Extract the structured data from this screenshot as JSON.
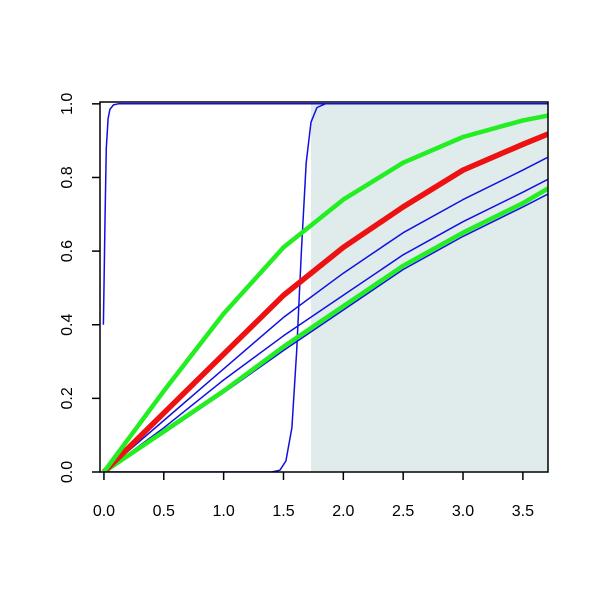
{
  "chart_data": {
    "type": "line",
    "xlim": [
      -0.033,
      3.71
    ],
    "ylim": [
      0,
      1.005
    ],
    "xticks": [
      {
        "value": 0,
        "label": "0.0"
      },
      0.5,
      {
        "value": 1,
        "label": "1.0"
      },
      1.5,
      {
        "value": 2,
        "label": "2.0"
      },
      2.5,
      {
        "value": 3,
        "label": "3.0"
      },
      3.5
    ],
    "yticks": [
      {
        "value": 0,
        "label": "0.0"
      },
      0.2,
      0.4,
      0.6,
      0.8,
      {
        "value": 1,
        "label": "1.0"
      }
    ],
    "shade": {
      "x": [
        1.73,
        3.71
      ],
      "y": [
        0,
        1
      ],
      "color": "#e0ecec"
    },
    "series": [
      {
        "color": "#1010e0",
        "width": 1.5,
        "x": [
          -0.005,
          0.01,
          0.02,
          0.035,
          0.05,
          0.08,
          0.12,
          3.71
        ],
        "values": [
          0.4,
          0.7,
          0.88,
          0.96,
          0.985,
          0.997,
          1.0,
          1.0
        ]
      },
      {
        "color": "#1010e0",
        "width": 1.5,
        "x": [
          0,
          1.4,
          1.47,
          1.52,
          1.57,
          1.61,
          1.65,
          1.69,
          1.73,
          1.78,
          1.85,
          3.71
        ],
        "values": [
          0,
          0,
          0.005,
          0.03,
          0.12,
          0.33,
          0.6,
          0.84,
          0.95,
          0.99,
          1.0,
          1.0
        ]
      },
      {
        "color": "#1010e0",
        "width": 1.5,
        "x": [
          0,
          0.5,
          1,
          1.5,
          2,
          2.5,
          3,
          3.5,
          3.71
        ],
        "values": [
          0,
          0.14,
          0.28,
          0.42,
          0.54,
          0.65,
          0.74,
          0.82,
          0.855
        ]
      },
      {
        "color": "#1010e0",
        "width": 1.5,
        "x": [
          0,
          0.5,
          1,
          1.5,
          2,
          2.5,
          3,
          3.5,
          3.71
        ],
        "values": [
          0,
          0.12,
          0.25,
          0.37,
          0.48,
          0.59,
          0.68,
          0.76,
          0.795
        ]
      },
      {
        "color": "#1010e0",
        "width": 1.5,
        "x": [
          0,
          0.5,
          1,
          1.5,
          2,
          2.5,
          3,
          3.5,
          3.71
        ],
        "values": [
          0,
          0.105,
          0.215,
          0.33,
          0.44,
          0.55,
          0.64,
          0.72,
          0.755
        ]
      },
      {
        "color": "#22ee22",
        "width": 4.5,
        "x": [
          0,
          0.5,
          1,
          1.5,
          2,
          2.5,
          3,
          3.5,
          3.71
        ],
        "values": [
          0,
          0.11,
          0.22,
          0.34,
          0.45,
          0.56,
          0.65,
          0.73,
          0.77
        ]
      },
      {
        "color": "#ee1111",
        "width": 5.5,
        "x": [
          0,
          0.5,
          1,
          1.5,
          2,
          2.5,
          3,
          3.5,
          3.71
        ],
        "values": [
          0,
          0.16,
          0.32,
          0.48,
          0.61,
          0.72,
          0.82,
          0.89,
          0.918
        ]
      },
      {
        "color": "#22ee22",
        "width": 4.5,
        "x": [
          0,
          0.5,
          1,
          1.5,
          2,
          2.5,
          3,
          3.5,
          3.71
        ],
        "values": [
          0,
          0.22,
          0.43,
          0.61,
          0.74,
          0.84,
          0.91,
          0.955,
          0.968
        ]
      }
    ]
  }
}
